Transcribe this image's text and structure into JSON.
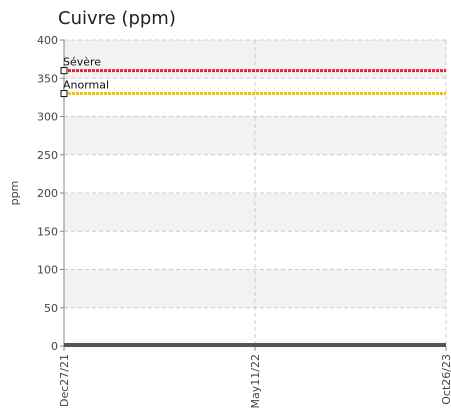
{
  "chart_data": {
    "type": "line",
    "title": "Cuivre (ppm)",
    "ylabel": "ppm",
    "ylim": [
      0,
      400
    ],
    "yticks": [
      0,
      50,
      100,
      150,
      200,
      250,
      300,
      350,
      400
    ],
    "x_categories": [
      "Dec27/21",
      "May11/22",
      "Oct26/23"
    ],
    "grid": true,
    "thresholds": [
      {
        "label": "Sévère",
        "value": 360,
        "color": "#e8232f"
      },
      {
        "label": "Anormal",
        "value": 330,
        "color": "#f2c500"
      }
    ],
    "series": [
      {
        "values": [
          0,
          0,
          0
        ],
        "color": "#555555"
      }
    ]
  }
}
